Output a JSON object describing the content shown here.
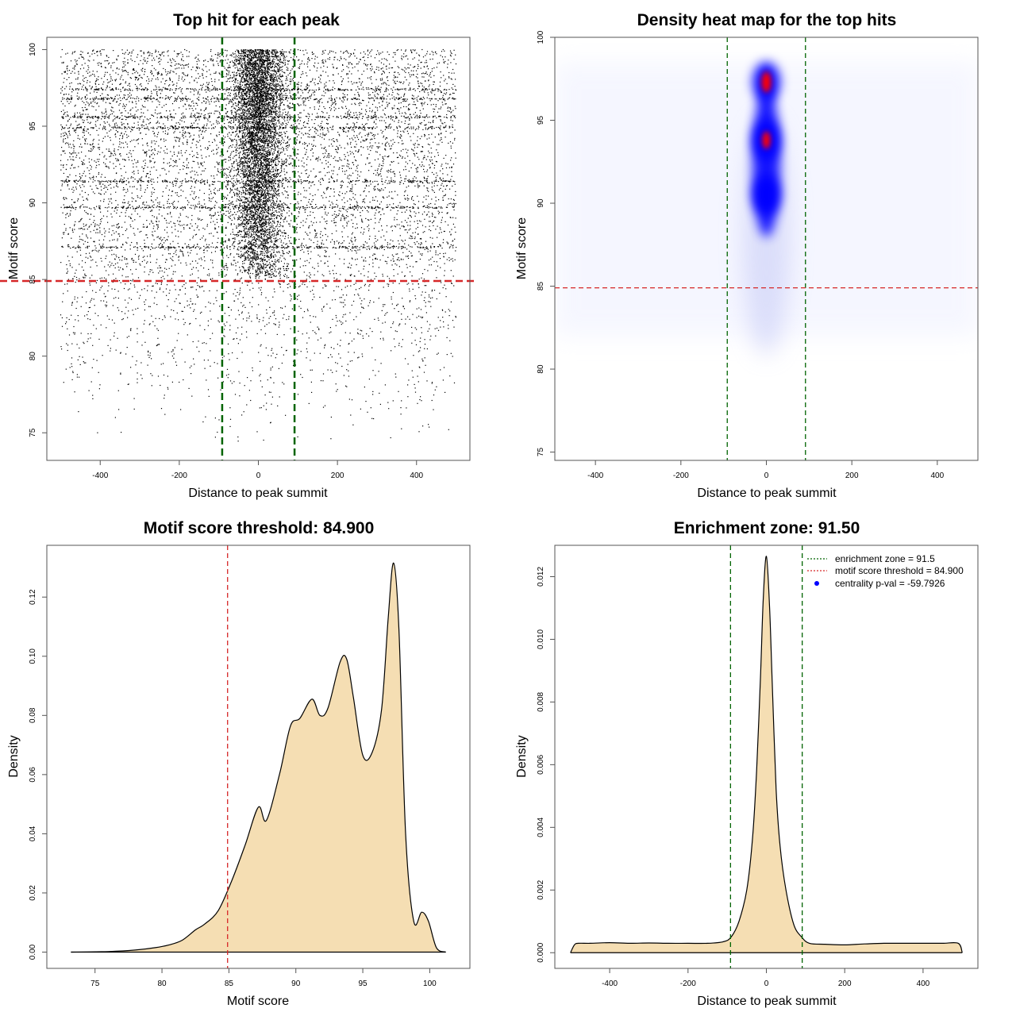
{
  "chart_data": [
    {
      "id": "scatter",
      "type": "scatter",
      "title": "Top hit for each peak",
      "xlabel": "Distance to peak summit",
      "ylabel": "Motif score",
      "xlim": [
        -535,
        535
      ],
      "ylim": [
        73.2,
        100.8
      ],
      "xticks": [
        -400,
        -200,
        0,
        200,
        400
      ],
      "yticks": [
        75,
        80,
        85,
        90,
        95,
        100
      ],
      "x_range_of_points": [
        -500,
        500
      ],
      "central_window": [
        -91.5,
        91.5
      ],
      "core_score_range": [
        84,
        100
      ],
      "sparse_score_range": [
        74,
        84
      ],
      "dense_score_levels": [
        97.4,
        96.8,
        95.6,
        94.9,
        91.4,
        89.7,
        87.1
      ],
      "enrichment_lines_x": [
        -91.5,
        91.5
      ],
      "threshold_line_y": 84.9,
      "colors": {
        "points": "#000000",
        "enrichment": "#006400",
        "threshold": "#d62728"
      }
    },
    {
      "id": "heatmap",
      "type": "heatmap",
      "title": "Density heat map for the top hits",
      "xlabel": "Distance to peak summit",
      "ylabel": "Motif score",
      "xlim": [
        -495,
        495
      ],
      "ylim": [
        74.5,
        100
      ],
      "xticks": [
        -400,
        -200,
        0,
        200,
        400
      ],
      "yticks": [
        75,
        80,
        85,
        90,
        95,
        100
      ],
      "hotspots": [
        {
          "x": 0,
          "y": 97.3,
          "intensity": 1.0
        },
        {
          "x": 0,
          "y": 93.8,
          "intensity": 0.85
        },
        {
          "x": 0,
          "y": 90.5,
          "intensity": 0.5
        }
      ],
      "enrichment_lines_x": [
        -91.5,
        91.5
      ],
      "threshold_line_y": 84.9,
      "colors": {
        "low": "#ffffff",
        "mid": "#0000ff",
        "high": "#ff0000",
        "enrichment": "#006400",
        "threshold": "#d62728"
      }
    },
    {
      "id": "score_density",
      "type": "area",
      "title": "Motif score threshold: 84.900",
      "xlabel": "Motif score",
      "ylabel": "Density",
      "xlim": [
        71.4,
        103.0
      ],
      "ylim": [
        -0.0055,
        0.1375
      ],
      "xticks": [
        75,
        80,
        85,
        90,
        95,
        100
      ],
      "yticks": [
        0.0,
        0.02,
        0.04,
        0.06,
        0.08,
        0.1,
        0.12
      ],
      "ytick_labels": [
        "0.00",
        "0.02",
        "0.04",
        "0.06",
        "0.08",
        "0.10",
        "0.12"
      ],
      "x": [
        73.2,
        76,
        78,
        79.5,
        80.5,
        81.5,
        82.5,
        83.2,
        84.2,
        85.2,
        86.2,
        87.2,
        87.8,
        88.8,
        89.6,
        90.3,
        91.2,
        91.8,
        92.4,
        93.3,
        93.8,
        94.3,
        95.0,
        95.7,
        96.4,
        96.9,
        97.3,
        97.7,
        98.2,
        98.8,
        99.4,
        99.9,
        100.5,
        101.2
      ],
      "y": [
        0.0,
        0.0002,
        0.0007,
        0.0015,
        0.0024,
        0.004,
        0.0075,
        0.0095,
        0.014,
        0.024,
        0.036,
        0.049,
        0.0445,
        0.0605,
        0.0765,
        0.079,
        0.0855,
        0.08,
        0.0825,
        0.098,
        0.099,
        0.086,
        0.0665,
        0.0675,
        0.082,
        0.113,
        0.1315,
        0.109,
        0.04,
        0.0105,
        0.0135,
        0.0105,
        0.0015,
        0.0
      ],
      "threshold_line_x": 84.9,
      "colors": {
        "fill": "#f5deb3",
        "stroke": "#000000",
        "threshold": "#d62728"
      }
    },
    {
      "id": "distance_density",
      "type": "area",
      "title": "Enrichment zone: 91.50",
      "xlabel": "Distance to peak summit",
      "ylabel": "Density",
      "xlim": [
        -540,
        540
      ],
      "ylim": [
        -0.0005,
        0.013
      ],
      "xticks": [
        -400,
        -200,
        0,
        200,
        400
      ],
      "yticks": [
        0.0,
        0.002,
        0.004,
        0.006,
        0.008,
        0.01,
        0.012
      ],
      "ytick_labels": [
        "0.000",
        "0.002",
        "0.004",
        "0.006",
        "0.008",
        "0.010",
        "0.012"
      ],
      "x": [
        -500,
        -490,
        -480,
        -450,
        -400,
        -350,
        -300,
        -250,
        -200,
        -150,
        -110,
        -90,
        -70,
        -50,
        -35,
        -25,
        -15,
        -8,
        0,
        8,
        15,
        25,
        35,
        50,
        70,
        90,
        110,
        150,
        200,
        250,
        300,
        350,
        400,
        450,
        490,
        500
      ],
      "y": [
        0.0,
        0.00025,
        0.0003,
        0.0003,
        0.00032,
        0.0003,
        0.00031,
        0.0003,
        0.0003,
        0.0003,
        0.00035,
        0.0005,
        0.001,
        0.002,
        0.0037,
        0.0058,
        0.0088,
        0.0113,
        0.01265,
        0.0111,
        0.0086,
        0.0052,
        0.0034,
        0.002,
        0.0009,
        0.0005,
        0.0003,
        0.00027,
        0.00025,
        0.00028,
        0.0003,
        0.0003,
        0.0003,
        0.0003,
        0.0003,
        0.0
      ],
      "enrichment_lines_x": [
        -91.5,
        91.5
      ],
      "legend": {
        "position": "top-right",
        "entries": [
          {
            "label": "enrichment zone = 91.5",
            "style": "dotted-line",
            "color": "#006400"
          },
          {
            "label": "motif score threshold = 84.900",
            "style": "dotted-line",
            "color": "#d62728"
          },
          {
            "label": "centrality p-val = -59.7926",
            "style": "point",
            "color": "#0000ff"
          }
        ]
      },
      "colors": {
        "fill": "#f5deb3",
        "stroke": "#000000",
        "enrichment": "#006400"
      }
    }
  ]
}
